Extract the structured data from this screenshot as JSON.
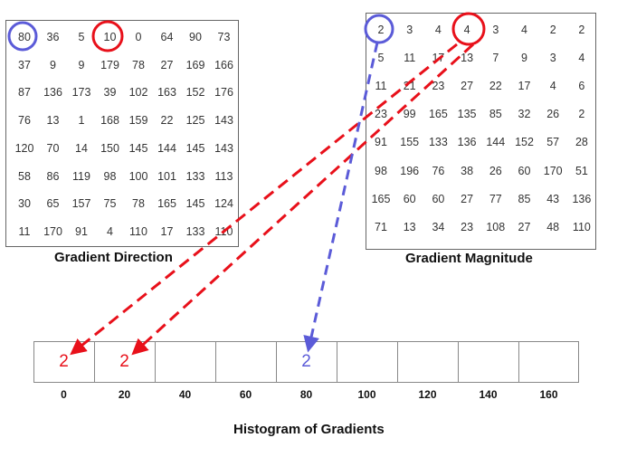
{
  "gradient_direction": {
    "caption": "Gradient Direction",
    "rows": [
      [
        "80",
        "36",
        "5",
        "10",
        "0",
        "64",
        "90",
        "73"
      ],
      [
        "37",
        "9",
        "9",
        "179",
        "78",
        "27",
        "169",
        "166"
      ],
      [
        "87",
        "136",
        "173",
        "39",
        "102",
        "163",
        "152",
        "176"
      ],
      [
        "76",
        "13",
        "1",
        "168",
        "159",
        "22",
        "125",
        "143"
      ],
      [
        "120",
        "70",
        "14",
        "150",
        "145",
        "144",
        "145",
        "143"
      ],
      [
        "58",
        "86",
        "119",
        "98",
        "100",
        "101",
        "133",
        "113"
      ],
      [
        "30",
        "65",
        "157",
        "75",
        "78",
        "165",
        "145",
        "124"
      ],
      [
        "11",
        "170",
        "91",
        "4",
        "110",
        "17",
        "133",
        "110"
      ]
    ]
  },
  "gradient_magnitude": {
    "caption": "Gradient Magnitude",
    "rows": [
      [
        "2",
        "3",
        "4",
        "4",
        "3",
        "4",
        "2",
        "2"
      ],
      [
        "5",
        "11",
        "17",
        "13",
        "7",
        "9",
        "3",
        "4"
      ],
      [
        "11",
        "21",
        "23",
        "27",
        "22",
        "17",
        "4",
        "6"
      ],
      [
        "23",
        "99",
        "165",
        "135",
        "85",
        "32",
        "26",
        "2"
      ],
      [
        "91",
        "155",
        "133",
        "136",
        "144",
        "152",
        "57",
        "28"
      ],
      [
        "98",
        "196",
        "76",
        "38",
        "26",
        "60",
        "170",
        "51"
      ],
      [
        "165",
        "60",
        "60",
        "27",
        "77",
        "85",
        "43",
        "136"
      ],
      [
        "71",
        "13",
        "34",
        "23",
        "108",
        "27",
        "48",
        "110"
      ]
    ]
  },
  "histogram": {
    "title": "Histogram of Gradients",
    "bins": [
      "0",
      "20",
      "40",
      "60",
      "80",
      "100",
      "120",
      "140",
      "160"
    ],
    "values": [
      {
        "bin_index": 0,
        "text": "2",
        "color": "#e8101a"
      },
      {
        "bin_index": 1,
        "text": "2",
        "color": "#e8101a"
      },
      {
        "bin_index": 4,
        "text": "2",
        "color": "#5b5bd8"
      }
    ]
  },
  "colors": {
    "red": "#e8101a",
    "blue": "#5b5bd8"
  }
}
